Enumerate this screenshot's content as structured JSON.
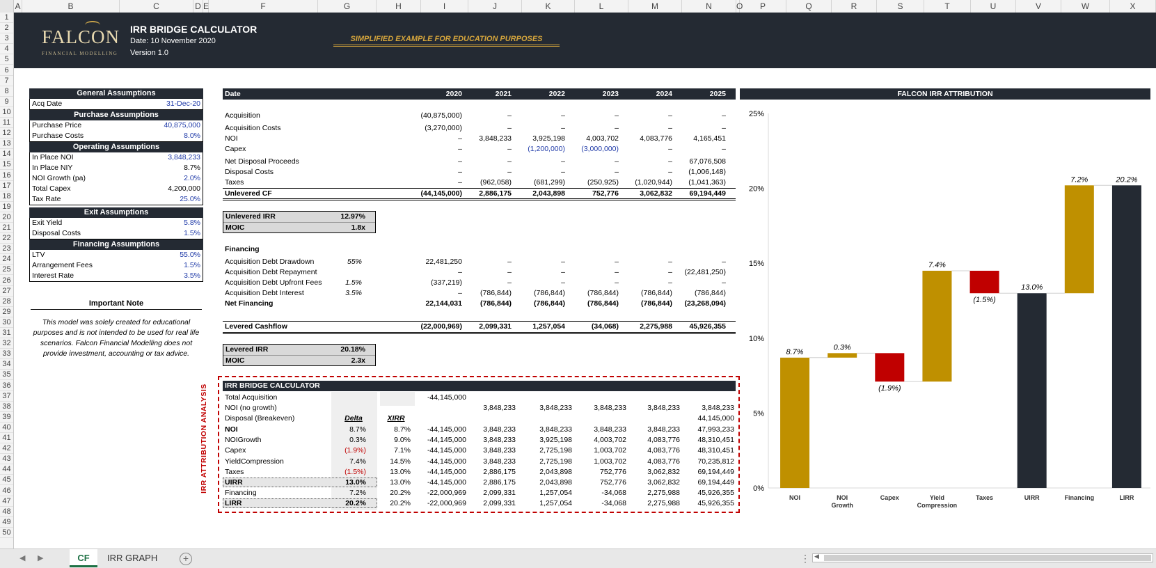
{
  "columns": [
    "A",
    "B",
    "C",
    "D",
    "E",
    "F",
    "G",
    "H",
    "I",
    "J",
    "K",
    "L",
    "M",
    "N",
    "O",
    "P",
    "Q",
    "R",
    "S",
    "T",
    "U",
    "V",
    "W",
    "X"
  ],
  "rows": [
    "1",
    "2",
    "3",
    "4",
    "5",
    "6",
    "7",
    "8",
    "9",
    "10",
    "11",
    "12",
    "13",
    "14",
    "15",
    "16",
    "17",
    "18",
    "19",
    "20",
    "21",
    "22",
    "23",
    "24",
    "25",
    "26",
    "27",
    "28",
    "29",
    "30",
    "31",
    "32",
    "33",
    "34",
    "35",
    "36",
    "37",
    "38",
    "39",
    "40",
    "41",
    "42",
    "43",
    "44",
    "45",
    "46",
    "47",
    "48",
    "49",
    "50"
  ],
  "header": {
    "logo": "FALCON",
    "logo_sub": "FINANCIAL MODELLING",
    "title": "IRR BRIDGE CALCULATOR",
    "date": "Date: 10 November 2020",
    "version": "Version 1.0",
    "note": "SIMPLIFIED EXAMPLE FOR EDUCATION PURPOSES"
  },
  "assumptions": {
    "general_title": "General Assumptions",
    "acq_date_label": "Acq Date",
    "acq_date": "31-Dec-20",
    "purchase_title": "Purchase Assumptions",
    "purchase_price_label": "Purchase Price",
    "purchase_price": "40,875,000",
    "purchase_costs_label": "Purchase Costs",
    "purchase_costs": "8.0%",
    "operating_title": "Operating Assumptions",
    "in_place_noi_label": "In Place NOI",
    "in_place_noi": "3,848,233",
    "in_place_niy_label": "In Place NIY",
    "in_place_niy": "8.7%",
    "noi_growth_label": "NOI Growth (pa)",
    "noi_growth": "2.0%",
    "total_capex_label": "Total Capex",
    "total_capex": "4,200,000",
    "tax_rate_label": "Tax Rate",
    "tax_rate": "25.0%",
    "exit_title": "Exit Assumptions",
    "exit_yield_label": "Exit Yield",
    "exit_yield": "5.8%",
    "disposal_costs_label": "Disposal Costs",
    "disposal_costs": "1.5%",
    "financing_title": "Financing Assumptions",
    "ltv_label": "LTV",
    "ltv": "55.0%",
    "arrangement_fees_label": "Arrangement Fees",
    "arrangement_fees": "1.5%",
    "interest_rate_label": "Interest Rate",
    "interest_rate": "3.5%"
  },
  "important_note": {
    "title": "Important Note",
    "text": "This model was solely created for educational purposes and is not intended to be used for real life scenarios. Falcon Financial Modelling does not provide investment, accounting or tax advice."
  },
  "cashflow": {
    "date_label": "Date",
    "years": [
      "2020",
      "2021",
      "2022",
      "2023",
      "2024",
      "2025"
    ],
    "acquisition": {
      "label": "Acquisition",
      "values": [
        "(40,875,000)",
        "–",
        "–",
        "–",
        "–",
        "–"
      ]
    },
    "acquisition_costs": {
      "label": "Acquisition Costs",
      "values": [
        "(3,270,000)",
        "–",
        "–",
        "–",
        "–",
        "–"
      ]
    },
    "noi": {
      "label": "NOI",
      "values": [
        "–",
        "3,848,233",
        "3,925,198",
        "4,003,702",
        "4,083,776",
        "4,165,451"
      ]
    },
    "capex": {
      "label": "Capex",
      "values": [
        "–",
        "–",
        "(1,200,000)",
        "(3,000,000)",
        "–",
        "–"
      ]
    },
    "net_disposal": {
      "label": "Net Disposal Proceeds",
      "values": [
        "–",
        "–",
        "–",
        "–",
        "–",
        "67,076,508"
      ]
    },
    "disposal_costs": {
      "label": "Disposal Costs",
      "values": [
        "–",
        "–",
        "–",
        "–",
        "–",
        "(1,006,148)"
      ]
    },
    "taxes": {
      "label": "Taxes",
      "values": [
        "–",
        "(962,058)",
        "(681,299)",
        "(250,925)",
        "(1,020,944)",
        "(1,041,363)"
      ]
    },
    "unlevered_cf": {
      "label": "Unlevered CF",
      "values": [
        "(44,145,000)",
        "2,886,175",
        "2,043,898",
        "752,776",
        "3,062,832",
        "69,194,449"
      ]
    },
    "unlevered_irr_label": "Unlevered IRR",
    "unlevered_irr": "12.97%",
    "moic_label": "MOIC",
    "moic_unlevered": "1.8x",
    "financing_label": "Financing",
    "debt_drawdown": {
      "label": "Acquisition Debt Drawdown",
      "rate": "55%",
      "values": [
        "22,481,250",
        "–",
        "–",
        "–",
        "–",
        "–"
      ]
    },
    "debt_repayment": {
      "label": "Acquisition Debt Repayment",
      "rate": "",
      "values": [
        "–",
        "–",
        "–",
        "–",
        "–",
        "(22,481,250)"
      ]
    },
    "upfront_fees": {
      "label": "Acquisition Debt Upfront Fees",
      "rate": "1.5%",
      "values": [
        "(337,219)",
        "–",
        "–",
        "–",
        "–",
        "–"
      ]
    },
    "debt_interest": {
      "label": "Acquisition Debt Interest",
      "rate": "3.5%",
      "values": [
        "–",
        "(786,844)",
        "(786,844)",
        "(786,844)",
        "(786,844)",
        "(786,844)"
      ]
    },
    "net_financing": {
      "label": "Net Financing",
      "values": [
        "22,144,031",
        "(786,844)",
        "(786,844)",
        "(786,844)",
        "(786,844)",
        "(23,268,094)"
      ]
    },
    "levered_cf": {
      "label": "Levered Cashflow",
      "values": [
        "(22,000,969)",
        "2,099,331",
        "1,257,054",
        "(34,068)",
        "2,275,988",
        "45,926,355"
      ]
    },
    "levered_irr_label": "Levered IRR",
    "levered_irr": "20.18%",
    "moic_levered": "2.3x"
  },
  "bridge": {
    "vertical_label": "IRR ATTRIBUTION ANALYSIS",
    "title": "IRR BRIDGE CALCULATOR",
    "total_acquisition": {
      "label": "Total Acquisition",
      "value": "-44,145,000"
    },
    "noi_no_growth": {
      "label": "NOI (no growth)",
      "values": [
        "3,848,233",
        "3,848,233",
        "3,848,233",
        "3,848,233",
        "3,848,233"
      ]
    },
    "disposal_breakeven": {
      "label": "Disposal (Breakeven)",
      "value": "44,145,000"
    },
    "delta_header": "Delta",
    "xirr_header": "XIRR",
    "rows": [
      {
        "label": "NOI",
        "delta": "8.7%",
        "xirr": "8.7%",
        "values": [
          "-44,145,000",
          "3,848,233",
          "3,848,233",
          "3,848,233",
          "3,848,233",
          "47,993,233"
        ]
      },
      {
        "label": "NOIGrowth",
        "delta": "0.3%",
        "xirr": "9.0%",
        "values": [
          "-44,145,000",
          "3,848,233",
          "3,925,198",
          "4,003,702",
          "4,083,776",
          "48,310,451"
        ]
      },
      {
        "label": "Capex",
        "delta": "(1.9%)",
        "xirr": "7.1%",
        "values": [
          "-44,145,000",
          "3,848,233",
          "2,725,198",
          "1,003,702",
          "4,083,776",
          "48,310,451"
        ]
      },
      {
        "label": "YieldCompression",
        "delta": "7.4%",
        "xirr": "14.5%",
        "values": [
          "-44,145,000",
          "3,848,233",
          "2,725,198",
          "1,003,702",
          "4,083,776",
          "70,235,812"
        ]
      },
      {
        "label": "Taxes",
        "delta": "(1.5%)",
        "xirr": "13.0%",
        "values": [
          "-44,145,000",
          "2,886,175",
          "2,043,898",
          "752,776",
          "3,062,832",
          "69,194,449"
        ]
      },
      {
        "label": "UIRR",
        "delta": "13.0%",
        "xirr": "13.0%",
        "values": [
          "-44,145,000",
          "2,886,175",
          "2,043,898",
          "752,776",
          "3,062,832",
          "69,194,449"
        ]
      },
      {
        "label": "Financing",
        "delta": "7.2%",
        "xirr": "20.2%",
        "values": [
          "-22,000,969",
          "2,099,331",
          "1,257,054",
          "-34,068",
          "2,275,988",
          "45,926,355"
        ]
      },
      {
        "label": "LIRR",
        "delta": "20.2%",
        "xirr": "20.2%",
        "values": [
          "-22,000,969",
          "2,099,331",
          "1,257,054",
          "-34,068",
          "2,275,988",
          "45,926,355"
        ]
      }
    ]
  },
  "chart_title": "FALCON IRR ATTRIBUTION",
  "chart_data": {
    "type": "bar",
    "subtype": "waterfall",
    "title": "FALCON IRR ATTRIBUTION",
    "categories": [
      "NOI",
      "NOI Growth",
      "Capex",
      "Yield Compression",
      "Taxes",
      "UIRR",
      "Financing",
      "LIRR"
    ],
    "values": [
      8.7,
      0.3,
      -1.9,
      7.4,
      -1.5,
      13.0,
      7.2,
      20.2
    ],
    "labels": [
      "8.7%",
      "0.3%",
      "(1.9%)",
      "7.4%",
      "(1.5%)",
      "13.0%",
      "7.2%",
      "20.2%"
    ],
    "bar_types": [
      "delta",
      "delta",
      "delta",
      "delta",
      "delta",
      "total",
      "delta",
      "total"
    ],
    "y_ticks": [
      "0%",
      "5%",
      "10%",
      "15%",
      "20%",
      "25%"
    ],
    "ylim": [
      0,
      25
    ],
    "colors": {
      "positive": "#bf9000",
      "negative": "#c00000",
      "total": "#242a33"
    },
    "grid": false
  },
  "sheet_tabs": [
    "CF",
    "IRR GRAPH"
  ],
  "add_sheet": "+"
}
